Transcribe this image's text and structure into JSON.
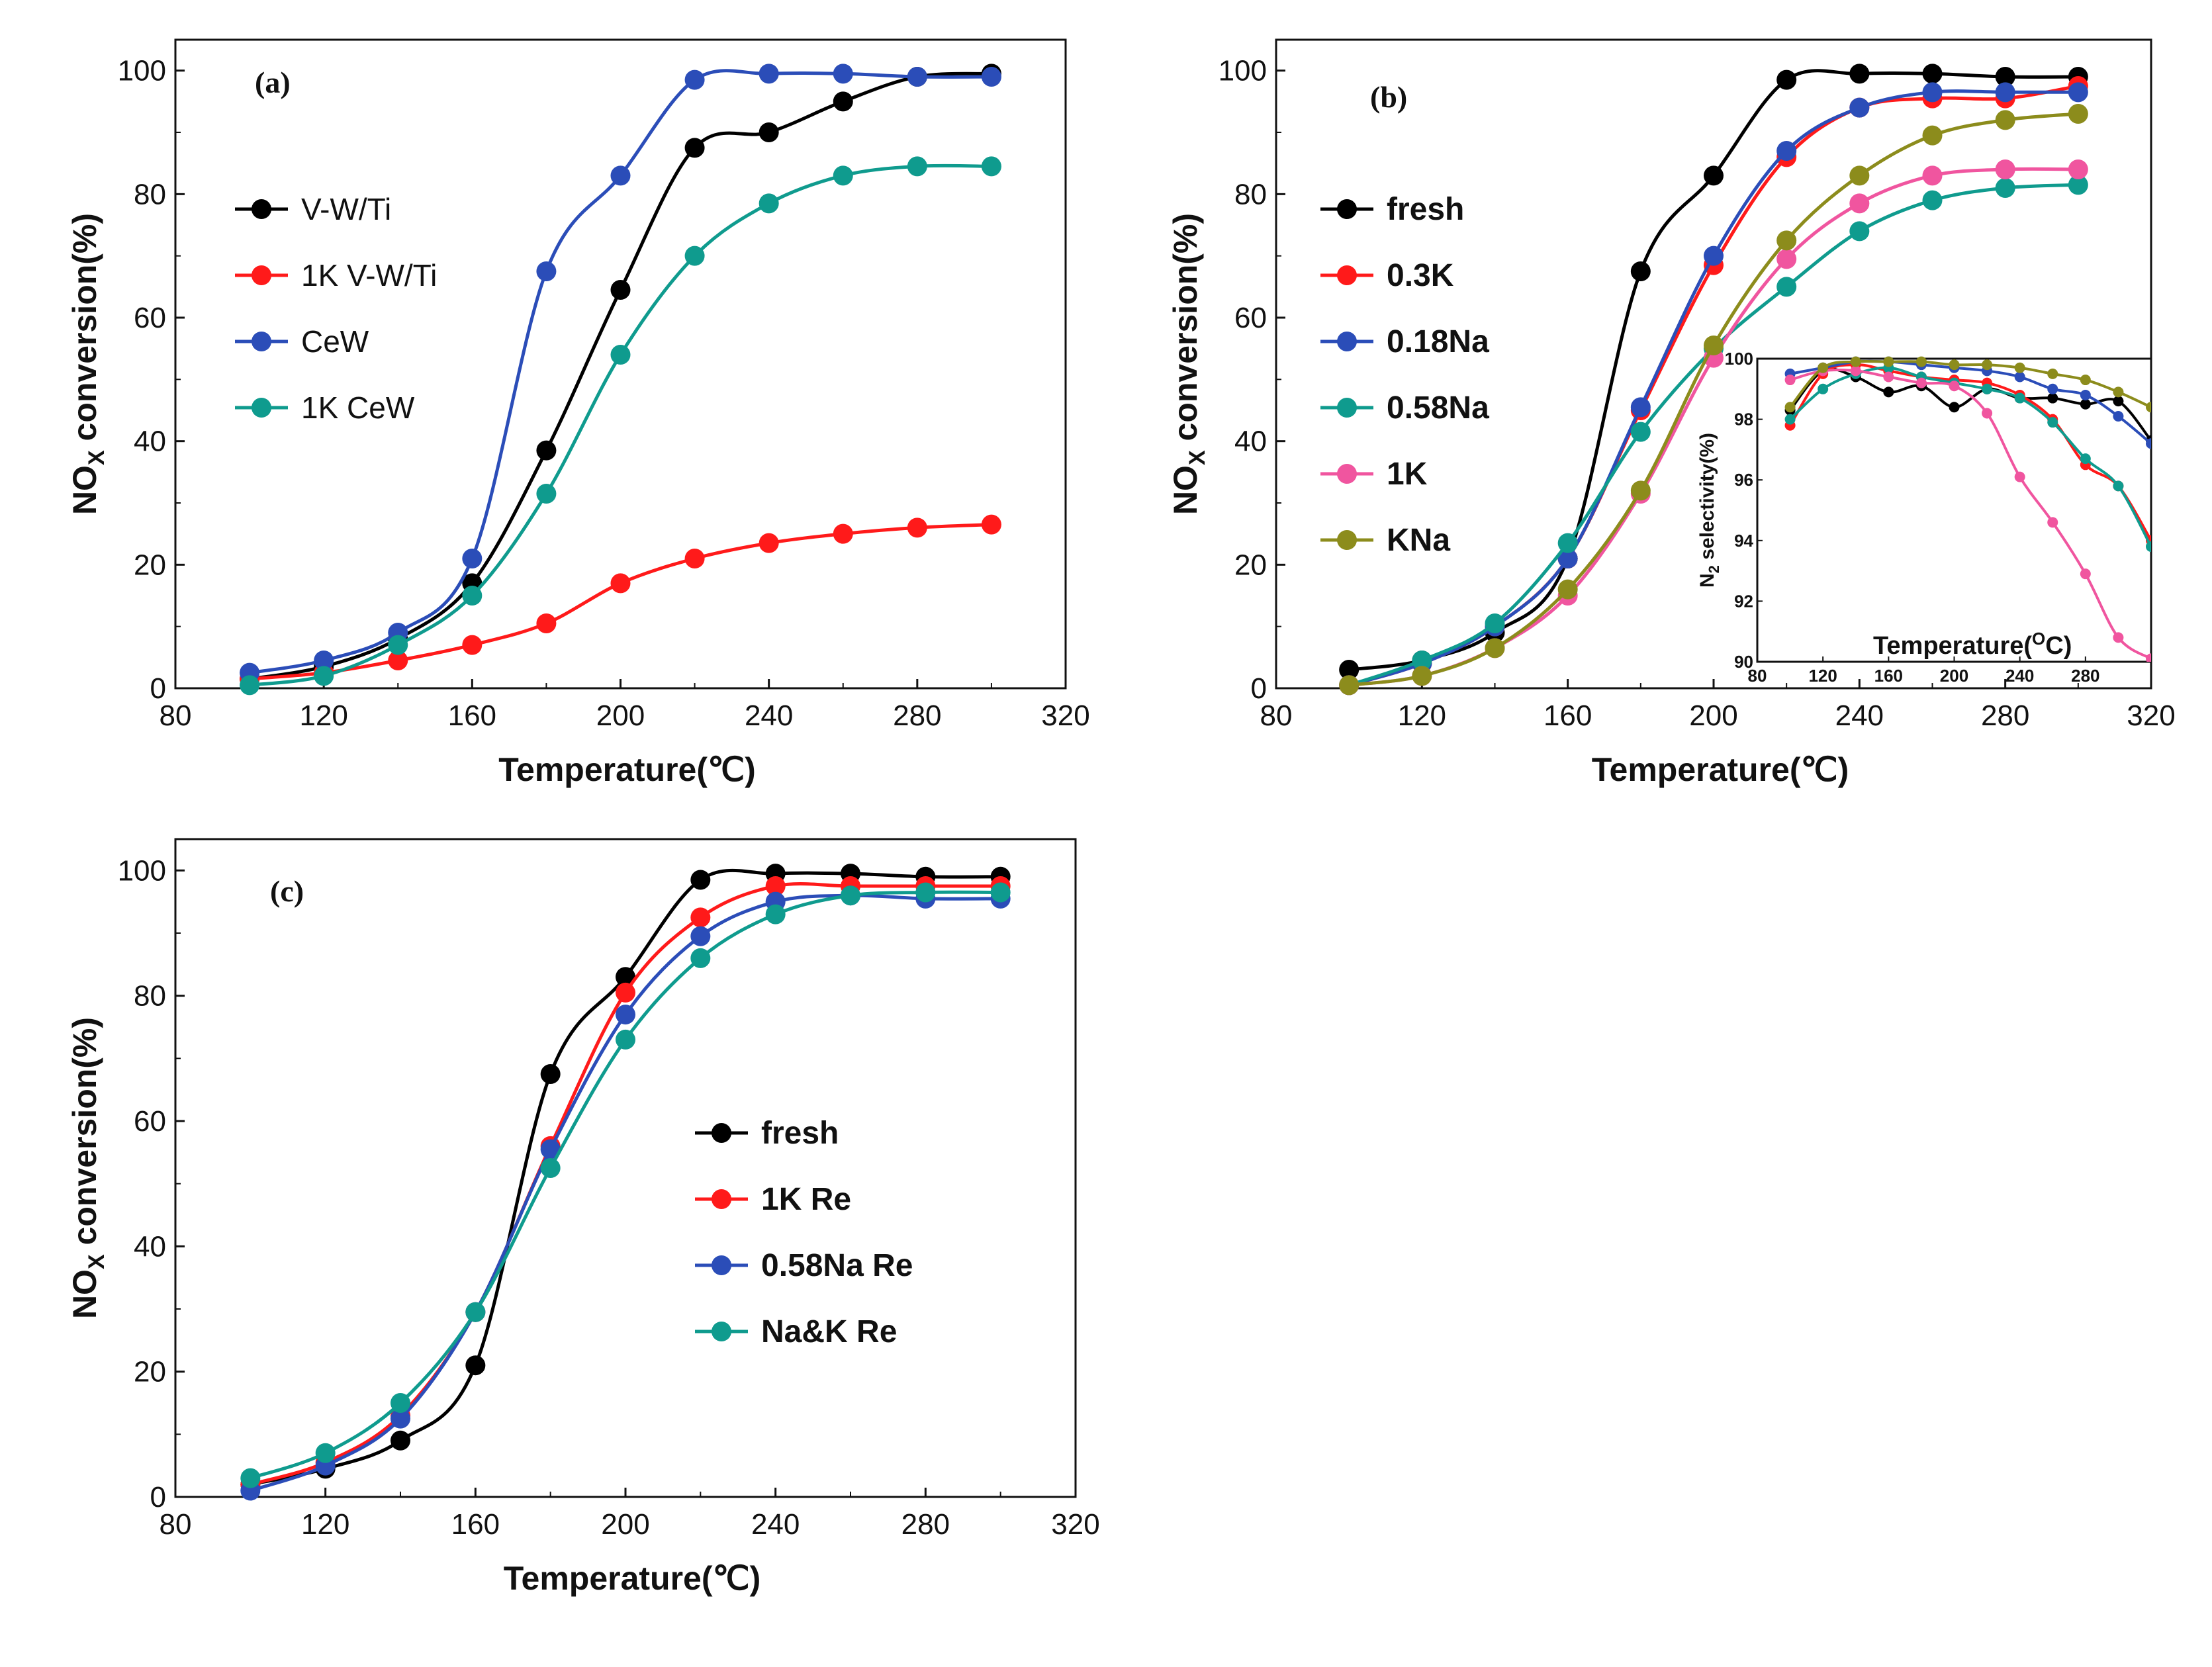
{
  "chart_data": [
    {
      "type": "line",
      "panel_label": "(a)",
      "xlabel": "Temperature(℃)",
      "ylabel_main": "NO",
      "ylabel_sub": "X",
      "ylabel_rest": " conversion(%)",
      "xlim": [
        80,
        320
      ],
      "ylim": [
        0,
        105
      ],
      "xticks": [
        "80",
        "120",
        "160",
        "200",
        "240",
        "280",
        "320"
      ],
      "yticks": [
        "0",
        "20",
        "40",
        "60",
        "80",
        "100"
      ],
      "x": [
        100,
        120,
        140,
        160,
        180,
        200,
        220,
        240,
        260,
        280,
        300
      ],
      "legend_position": "upper-left",
      "series": [
        {
          "name": "V-W/Ti",
          "color": "#000000",
          "values": [
            1.5,
            3.5,
            8,
            17,
            38.5,
            64.5,
            87.5,
            90,
            95,
            99,
            99.5
          ]
        },
        {
          "name": "1K V-W/Ti",
          "color": "#ff1a1a",
          "values": [
            1.5,
            2.5,
            4.5,
            7,
            10.5,
            17,
            21,
            23.5,
            25,
            26,
            26.5
          ]
        },
        {
          "name": "CeW",
          "color": "#2b4db8",
          "values": [
            2.5,
            4.5,
            9,
            21,
            67.5,
            83,
            98.5,
            99.5,
            99.5,
            99,
            99
          ]
        },
        {
          "name": "1K CeW",
          "color": "#0f9b8e",
          "values": [
            0.5,
            2,
            7,
            15,
            31.5,
            54,
            70,
            78.5,
            83,
            84.5,
            84.5
          ]
        }
      ]
    },
    {
      "type": "line",
      "panel_label": "(b)",
      "xlabel": "Temperature(℃)",
      "ylabel_main": "NO",
      "ylabel_sub": "X",
      "ylabel_rest": " conversion(%)",
      "xlim": [
        80,
        320
      ],
      "ylim": [
        0,
        105
      ],
      "xticks": [
        "80",
        "120",
        "160",
        "200",
        "240",
        "280",
        "320"
      ],
      "yticks": [
        "0",
        "20",
        "40",
        "60",
        "80",
        "100"
      ],
      "x": [
        100,
        120,
        140,
        160,
        180,
        200,
        220,
        240,
        260,
        280,
        300
      ],
      "legend_position": "left",
      "series": [
        {
          "name": "fresh",
          "color": "#000000",
          "values": [
            3,
            4.5,
            9,
            21,
            67.5,
            83,
            98.5,
            99.5,
            99.5,
            99,
            99
          ]
        },
        {
          "name": "0.3K",
          "color": "#ff1a1a",
          "values": [
            0.5,
            4,
            10,
            21,
            45,
            68.5,
            86,
            94,
            95.5,
            95.5,
            97.5
          ]
        },
        {
          "name": "0.18Na",
          "color": "#2b4db8",
          "values": [
            0.5,
            4,
            10,
            21,
            45.5,
            70,
            87,
            94,
            96.5,
            96.5,
            96.5
          ]
        },
        {
          "name": "0.58Na",
          "color": "#0f9b8e",
          "values": [
            0.5,
            4.5,
            10.5,
            23.5,
            41.5,
            55,
            65,
            74,
            79,
            81,
            81.5
          ]
        },
        {
          "name": "1K",
          "color": "#f0559f",
          "values": [
            0.5,
            2,
            6.5,
            15,
            31.5,
            53.5,
            69.5,
            78.5,
            83,
            84,
            84
          ]
        },
        {
          "name": "KNa",
          "color": "#8c8c1c",
          "values": [
            0.5,
            2,
            6.5,
            16,
            32,
            55.5,
            72.5,
            83,
            89.5,
            92,
            93
          ]
        }
      ],
      "inset": {
        "xlabel": "Temperature(°C)",
        "xlabel_main": "Temperature(",
        "xlabel_deg": "O",
        "xlabel_end": "C)",
        "ylabel_pre": "N",
        "ylabel_sub": "2",
        "ylabel_rest": " selectivity(%)",
        "xlim": [
          80,
          320
        ],
        "ylim": [
          90,
          100
        ],
        "xticks": [
          "80",
          "120",
          "160",
          "200",
          "240",
          "280"
        ],
        "yticks": [
          "90",
          "92",
          "94",
          "96",
          "98",
          "100"
        ],
        "x": [
          100,
          120,
          140,
          160,
          180,
          200,
          220,
          240,
          260,
          280,
          300,
          320
        ],
        "series": [
          {
            "name": "fresh",
            "color": "#000000",
            "values": [
              98.3,
              99.6,
              99.4,
              98.9,
              99.1,
              98.4,
              99.0,
              98.7,
              98.7,
              98.5,
              98.6,
              97.3
            ]
          },
          {
            "name": "0.3K",
            "color": "#ff1a1a",
            "values": [
              97.8,
              99.5,
              99.8,
              99.6,
              99.4,
              99.3,
              99.2,
              98.8,
              98.0,
              96.5,
              95.8,
              94.0
            ]
          },
          {
            "name": "0.18Na",
            "color": "#2b4db8",
            "values": [
              99.5,
              99.7,
              99.9,
              99.9,
              99.8,
              99.7,
              99.6,
              99.4,
              99.0,
              98.8,
              98.1,
              97.2
            ]
          },
          {
            "name": "0.58Na",
            "color": "#0f9b8e",
            "values": [
              98.0,
              99.0,
              99.5,
              99.7,
              99.4,
              99.2,
              99.0,
              98.7,
              97.9,
              96.7,
              95.8,
              93.8
            ]
          },
          {
            "name": "1K",
            "color": "#f0559f",
            "values": [
              99.3,
              99.6,
              99.6,
              99.4,
              99.2,
              99.1,
              98.2,
              96.1,
              94.6,
              92.9,
              90.8,
              90.1
            ]
          },
          {
            "name": "KNa",
            "color": "#8c8c1c",
            "values": [
              98.4,
              99.7,
              99.9,
              99.9,
              99.9,
              99.8,
              99.8,
              99.7,
              99.5,
              99.3,
              98.9,
              98.4
            ]
          }
        ]
      }
    },
    {
      "type": "line",
      "panel_label": "(c)",
      "xlabel": "Temperature(℃)",
      "ylabel_main": "NO",
      "ylabel_sub": "X",
      "ylabel_rest": " conversion(%)",
      "xlim": [
        80,
        320
      ],
      "ylim": [
        0,
        105
      ],
      "xticks": [
        "80",
        "120",
        "160",
        "200",
        "240",
        "280",
        "320"
      ],
      "yticks": [
        "0",
        "20",
        "40",
        "60",
        "80",
        "100"
      ],
      "x": [
        100,
        120,
        140,
        160,
        180,
        200,
        220,
        240,
        260,
        280,
        300
      ],
      "legend_position": "right-center",
      "series": [
        {
          "name": "fresh",
          "color": "#000000",
          "values": [
            2,
            4.5,
            9,
            21,
            67.5,
            83,
            98.5,
            99.5,
            99.5,
            99,
            99
          ]
        },
        {
          "name": "1K Re",
          "color": "#ff1a1a",
          "values": [
            2,
            5.5,
            13,
            29.5,
            56,
            80.5,
            92.5,
            97.5,
            97.5,
            97.5,
            97.5
          ]
        },
        {
          "name": "0.58Na Re",
          "color": "#2b4db8",
          "values": [
            1,
            5,
            12.5,
            29.5,
            55.5,
            77,
            89.5,
            95,
            96,
            95.5,
            95.5
          ]
        },
        {
          "name": "Na&K Re",
          "color": "#0f9b8e",
          "values": [
            3,
            7,
            15,
            29.5,
            52.5,
            73,
            86,
            93,
            96,
            96.5,
            96.5
          ]
        }
      ]
    }
  ]
}
